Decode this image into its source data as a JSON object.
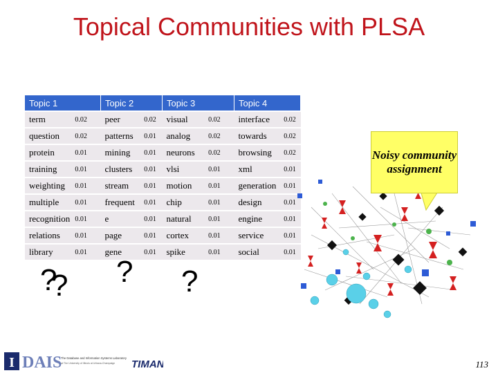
{
  "title": "Topical Communities with PLSA",
  "headers": [
    "Topic 1",
    "Topic 2",
    "Topic 3",
    "Topic 4"
  ],
  "rows": [
    [
      [
        "term",
        "0.02"
      ],
      [
        "peer",
        "0.02"
      ],
      [
        "visual",
        "0.02"
      ],
      [
        "interface",
        "0.02"
      ]
    ],
    [
      [
        "question",
        "0.02"
      ],
      [
        "patterns",
        "0.01"
      ],
      [
        "analog",
        "0.02"
      ],
      [
        "towards",
        "0.02"
      ]
    ],
    [
      [
        "protein",
        "0.01"
      ],
      [
        "mining",
        "0.01"
      ],
      [
        "neurons",
        "0.02"
      ],
      [
        "browsing",
        "0.02"
      ]
    ],
    [
      [
        "training",
        "0.01"
      ],
      [
        "clusters",
        "0.01"
      ],
      [
        "vlsi",
        "0.01"
      ],
      [
        "xml",
        "0.01"
      ]
    ],
    [
      [
        "weighting",
        "0.01"
      ],
      [
        "stream",
        "0.01"
      ],
      [
        "motion",
        "0.01"
      ],
      [
        "generation",
        "0.01"
      ]
    ],
    [
      [
        "multiple",
        "0.01"
      ],
      [
        "frequent",
        "0.01"
      ],
      [
        "chip",
        "0.01"
      ],
      [
        "design",
        "0.01"
      ]
    ],
    [
      [
        "recognition",
        "0.01"
      ],
      [
        "e",
        "0.01"
      ],
      [
        "natural",
        "0.01"
      ],
      [
        "engine",
        "0.01"
      ]
    ],
    [
      [
        "relations",
        "0.01"
      ],
      [
        "page",
        "0.01"
      ],
      [
        "cortex",
        "0.01"
      ],
      [
        "service",
        "0.01"
      ]
    ],
    [
      [
        "library",
        "0.01"
      ],
      [
        "gene",
        "0.01"
      ],
      [
        "spike",
        "0.01"
      ],
      [
        "social",
        "0.01"
      ]
    ]
  ],
  "question_marks": [
    "?",
    "?",
    "?",
    "?"
  ],
  "callout": "Noisy community assignment",
  "logo": {
    "letter": "I",
    "name": "DAIS",
    "line1": "The Database and Information Systems Laboratory",
    "line2": "at The University of Illinois at Urbana-Champaign",
    "lab2": "TIMAN"
  },
  "page_number": "113",
  "colors": {
    "title": "#c0141b",
    "header_bg": "#3366cc",
    "row_bg": "#ece8ec",
    "callout_bg": "#ffff66"
  }
}
